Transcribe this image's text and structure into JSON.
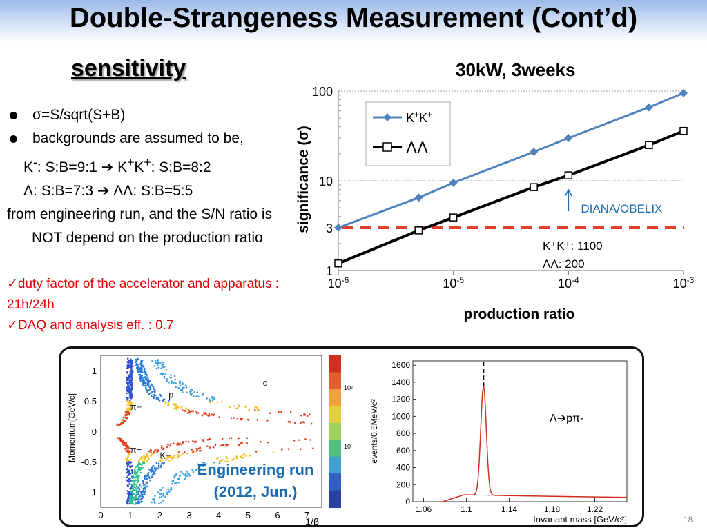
{
  "slide": {
    "title": "Double-Strangeness Measurement (Cont’d)",
    "subtitle": "sensitivity",
    "page_number": "18"
  },
  "bullets": {
    "b1": "σ=S/sqrt(S+B)",
    "b2": "backgrounds are assumed to be,",
    "b3_lhs": "K",
    "b3_lhs_sup": "-",
    "b3_mid": ": S:B=9:1 ➔ K",
    "b3_sup1": "+",
    "b3_k": "K",
    "b3_sup2": "+",
    "b3_rhs": ": S:B=8:2",
    "b4": "Λ: S:B=7:3 ➔ ΛΛ:  S:B=5:5",
    "b5": "from engineering run, and the S/N ratio is NOT depend on the production ratio"
  },
  "notes": {
    "n1": "✓duty factor of the accelerator and apparatus : 21h/24h",
    "n2": "✓DAQ and analysis eff. : 0.7"
  },
  "chart_data": [
    {
      "type": "line",
      "title": "30kW, 3weeks",
      "xlabel": "production ratio",
      "ylabel": "significance (σ)",
      "x_scale": "log",
      "y_scale": "log",
      "xlim": [
        1e-06,
        0.001
      ],
      "ylim": [
        1,
        100
      ],
      "x_ticks": [
        {
          "value": 1e-06,
          "base": "10",
          "exp": "-6"
        },
        {
          "value": 1e-05,
          "base": "10",
          "exp": "-5"
        },
        {
          "value": 0.0001,
          "base": "10",
          "exp": "-4"
        },
        {
          "value": 0.001,
          "base": "10",
          "exp": "-3"
        }
      ],
      "y_ticks": [
        {
          "value": 1,
          "label": "1"
        },
        {
          "value": 3,
          "label": "3"
        },
        {
          "value": 10,
          "label": "10"
        },
        {
          "value": 100,
          "label": "100"
        }
      ],
      "series": [
        {
          "name": "K+K+",
          "legend_base": "K",
          "legend_sup1": "+",
          "legend_sup2": "+",
          "color": "#4f81bd",
          "marker": "diamond",
          "x": [
            1e-06,
            5e-06,
            1e-05,
            5e-05,
            0.0001,
            0.0005,
            0.001
          ],
          "y": [
            3.0,
            6.5,
            9.5,
            21,
            30,
            66,
            95
          ]
        },
        {
          "name": "ΛΛ",
          "color": "#000000",
          "marker": "open-square",
          "x": [
            1e-06,
            5e-06,
            1e-05,
            5e-05,
            0.0001,
            0.0005,
            0.001
          ],
          "y": [
            1.2,
            2.8,
            3.9,
            8.5,
            11.5,
            25,
            36
          ]
        }
      ],
      "threshold": {
        "y": 3,
        "color": "#e04030"
      },
      "annotations": {
        "arrow_label": "DIANA/OBELIX",
        "kk_label": "K⁺K⁺: 1100",
        "ll_label": "ΛΛ:  200"
      }
    },
    {
      "type": "heatmap",
      "xlabel": "1/β",
      "ylabel": "Momentum[GeV/c]",
      "x_ticks": [
        "0",
        "1",
        "2",
        "3",
        "4",
        "5",
        "6",
        "7"
      ],
      "y_ticks": [
        "-1",
        "-0.5",
        "0",
        "0.5",
        "1"
      ],
      "labels": [
        "π+",
        "p",
        "d",
        "π−",
        "K−"
      ],
      "colorbar_ticks": [
        "10²",
        "10"
      ]
    },
    {
      "type": "line",
      "xlabel": "Invariant mass [GeV/c²]",
      "ylabel": "events/0.5MeV/c²",
      "xlim": [
        1.05,
        1.25
      ],
      "ylim": [
        0,
        1650
      ],
      "x_ticks": [
        "1.06",
        "1.1",
        "1.14",
        "1.18",
        "1.22"
      ],
      "y_ticks": [
        "0",
        "200",
        "400",
        "600",
        "800",
        "1000",
        "1200",
        "1400",
        "1600"
      ],
      "peak": {
        "x": 1.116,
        "y": 1290
      },
      "label": "Λ➔pπ-"
    }
  ],
  "engineering": {
    "line1": "Engineering run",
    "line2": "(2012, Jun.)"
  },
  "colors": {
    "kk": "#4f81bd",
    "ll": "#000000",
    "threshold": "#e04030",
    "notes": "#e00000",
    "eng": "#1a6ab0",
    "arrow": "#1a6ab0"
  }
}
